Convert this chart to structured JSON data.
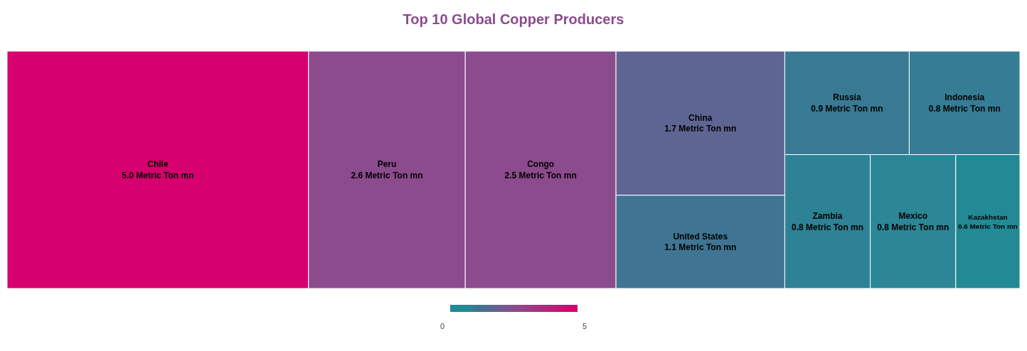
{
  "chart_data": {
    "type": "other",
    "title": "Top 10 Global Copper Producers",
    "categories": [
      "Chile",
      "Peru",
      "Congo",
      "China",
      "United States",
      "Russia",
      "Indonesia",
      "Zambia",
      "Mexico",
      "Kazakhstan"
    ],
    "values": [
      5.0,
      2.6,
      2.5,
      1.7,
      1.1,
      0.9,
      0.8,
      0.8,
      0.8,
      0.6
    ],
    "value_labels": [
      "5.0 Metric Ton mn",
      "2.6 Metric Ton mn",
      "2.5 Metric Ton mn",
      "1.7 Metric Ton mn",
      "1.1 Metric Ton mn",
      "0.9 Metric Ton mn",
      "0.8 Metric Ton mn",
      "0.8 Metric Ton mn",
      "0.8 Metric Ton mn",
      "0.6 Metric Ton mn"
    ],
    "colors": [
      "#d6006e",
      "#8b4b8d",
      "#8b4b8d",
      "#5e6592",
      "#3f7592",
      "#387a94",
      "#357d95",
      "#2e8295",
      "#2c8696",
      "#238995"
    ],
    "annotations": [
      "0",
      "5"
    ]
  }
}
